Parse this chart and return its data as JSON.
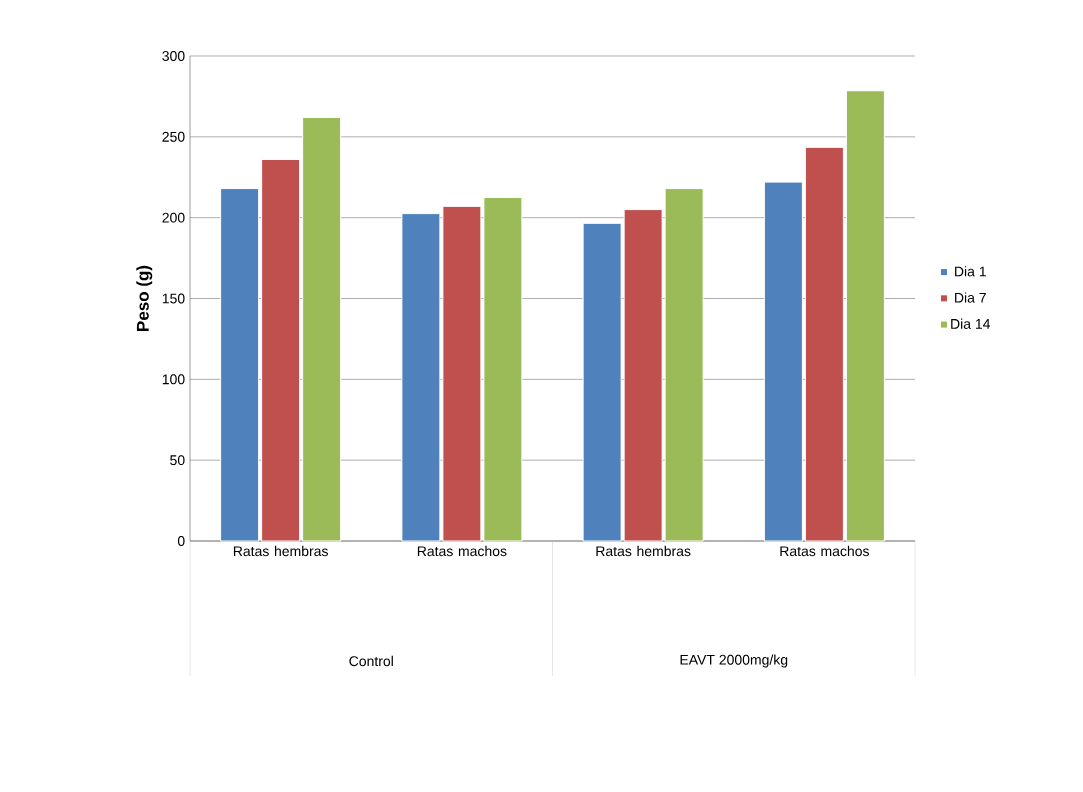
{
  "chart_data": {
    "type": "bar",
    "ylabel": "Peso (g)",
    "categories": [
      "Ratas hembras",
      "Ratas machos",
      "Ratas hembras",
      "Ratas machos"
    ],
    "series": [
      {
        "name": "Dia 1",
        "color": "#4f81bd",
        "values": [
          218,
          202.5,
          196.5,
          222
        ]
      },
      {
        "name": "Dia 7",
        "color": "#c0504d",
        "values": [
          236,
          207,
          205,
          243.5
        ]
      },
      {
        "name": "Dia 14",
        "color": "#9bbb59",
        "values": [
          262,
          212.5,
          218,
          278.5
        ]
      }
    ],
    "ylim": [
      0,
      300
    ],
    "yticks": [
      0,
      50,
      100,
      150,
      200,
      250,
      300
    ],
    "grid": "y",
    "legend": "right",
    "annotations": [
      "Control",
      "EAVT 2000mg/kg"
    ]
  }
}
